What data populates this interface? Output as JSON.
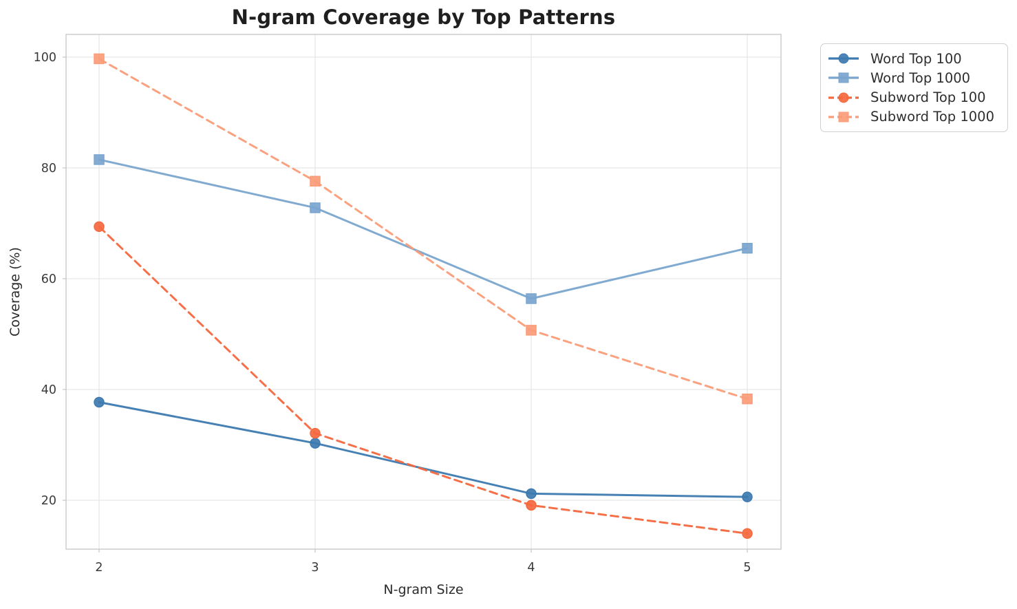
{
  "chart_data": {
    "type": "line",
    "title": "N-gram Coverage by Top Patterns",
    "xlabel": "N-gram Size",
    "ylabel": "Coverage (%)",
    "x": [
      2,
      3,
      4,
      5
    ],
    "xticks": [
      "2",
      "3",
      "4",
      "5"
    ],
    "yticks": [
      "20",
      "40",
      "60",
      "80",
      "100"
    ],
    "ytick_values": [
      20,
      40,
      60,
      80,
      100
    ],
    "xlim": [
      1.85,
      5.16
    ],
    "ylim": [
      11,
      104.1
    ],
    "grid": true,
    "legend_position": "outside-top-right",
    "series": [
      {
        "name": "Word Top 100",
        "color": "#3d7ab0",
        "marker": "circle",
        "linestyle": "solid",
        "values": [
          37.7,
          30.3,
          21.2,
          20.6
        ]
      },
      {
        "name": "Word Top 1000",
        "color": "#7aa5cf",
        "marker": "square",
        "linestyle": "solid",
        "values": [
          81.5,
          72.8,
          56.4,
          65.5
        ]
      },
      {
        "name": "Subword Top 100",
        "color": "#f4683e",
        "marker": "circle",
        "linestyle": "dashed",
        "values": [
          69.4,
          32.1,
          19.1,
          14.0
        ]
      },
      {
        "name": "Subword Top 1000",
        "color": "#fa9c78",
        "marker": "square",
        "linestyle": "dashed",
        "values": [
          99.7,
          77.6,
          50.7,
          38.3
        ]
      }
    ],
    "style": {
      "grid_color": "#e7e7e7",
      "spine_color": "#c9c9c9",
      "tick_label_color": "#3a3a3a",
      "background": "#ffffff"
    }
  }
}
